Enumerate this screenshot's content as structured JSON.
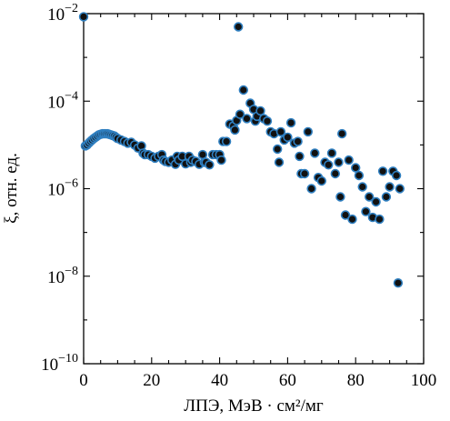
{
  "chart_data": {
    "type": "scatter",
    "title": "",
    "xlabel": "ЛПЭ, МэВ · см²/мг",
    "ylabel": "ξ, отн. ед.",
    "xlim": [
      0,
      100
    ],
    "ylim": [
      1e-10,
      0.01
    ],
    "yscale": "log",
    "grid": false,
    "legend": "none",
    "marker_fill": "#111111",
    "marker_edge": "#2f7fc0",
    "x_ticks": [
      {
        "value": 0,
        "label": "0"
      },
      {
        "value": 20,
        "label": "20"
      },
      {
        "value": 40,
        "label": "40"
      },
      {
        "value": 60,
        "label": "60"
      },
      {
        "value": 80,
        "label": "80"
      },
      {
        "value": 100,
        "label": "100"
      }
    ],
    "y_ticks": [
      {
        "value": 1e-10,
        "base": "10",
        "exp": "−10"
      },
      {
        "value": 1e-08,
        "base": "10",
        "exp": "−8"
      },
      {
        "value": 1e-06,
        "base": "10",
        "exp": "−6"
      },
      {
        "value": 0.0001,
        "base": "10",
        "exp": "−4"
      },
      {
        "value": 0.01,
        "base": "10",
        "exp": "−2"
      }
    ],
    "points": [
      [
        0.0,
        0.0085
      ],
      [
        0.5,
        9.5e-06
      ],
      [
        1.0,
        1e-05
      ],
      [
        1.5,
        1.1e-05
      ],
      [
        2.0,
        1.2e-05
      ],
      [
        2.5,
        1.3e-05
      ],
      [
        3.0,
        1.4e-05
      ],
      [
        3.5,
        1.5e-05
      ],
      [
        4.0,
        1.6e-05
      ],
      [
        4.5,
        1.7e-05
      ],
      [
        5.0,
        1.75e-05
      ],
      [
        5.5,
        1.8e-05
      ],
      [
        6.0,
        1.8e-05
      ],
      [
        6.5,
        1.8e-05
      ],
      [
        7.0,
        1.8e-05
      ],
      [
        7.5,
        1.75e-05
      ],
      [
        8.0,
        1.7e-05
      ],
      [
        8.5,
        1.65e-05
      ],
      [
        9.0,
        1.6e-05
      ],
      [
        9.5,
        1.5e-05
      ],
      [
        10.0,
        1.4e-05
      ],
      [
        11.0,
        1.3e-05
      ],
      [
        12.0,
        1.2e-05
      ],
      [
        13.0,
        1.1e-05
      ],
      [
        14.0,
        1.15e-05
      ],
      [
        15.0,
        1e-05
      ],
      [
        16.0,
        8.5e-06
      ],
      [
        17.0,
        9.5e-06
      ],
      [
        17.5,
        6.5e-06
      ],
      [
        18.0,
        6e-06
      ],
      [
        19.0,
        6e-06
      ],
      [
        20.0,
        5.5e-06
      ],
      [
        21.0,
        5e-06
      ],
      [
        22.0,
        5.5e-06
      ],
      [
        23.0,
        6e-06
      ],
      [
        23.5,
        4.5e-06
      ],
      [
        24.0,
        4.2e-06
      ],
      [
        25.0,
        4e-06
      ],
      [
        26.0,
        4.5e-06
      ],
      [
        27.0,
        3.6e-06
      ],
      [
        27.5,
        5.5e-06
      ],
      [
        28.0,
        4.5e-06
      ],
      [
        29.0,
        5.5e-06
      ],
      [
        30.0,
        3.7e-06
      ],
      [
        31.0,
        5.5e-06
      ],
      [
        31.5,
        4e-06
      ],
      [
        32.0,
        4.5e-06
      ],
      [
        33.0,
        4.2e-06
      ],
      [
        34.0,
        3.6e-06
      ],
      [
        35.0,
        6e-06
      ],
      [
        35.5,
        4e-06
      ],
      [
        36.0,
        4e-06
      ],
      [
        37.0,
        3.5e-06
      ],
      [
        38.0,
        6e-06
      ],
      [
        39.0,
        6e-06
      ],
      [
        40.0,
        6e-06
      ],
      [
        40.5,
        4.5e-06
      ],
      [
        41.0,
        1.2e-05
      ],
      [
        42.0,
        1.2e-05
      ],
      [
        43.0,
        3e-05
      ],
      [
        44.0,
        2.7e-05
      ],
      [
        44.5,
        2.2e-05
      ],
      [
        45.0,
        3.6e-05
      ],
      [
        45.5,
        0.005
      ],
      [
        46.0,
        5e-05
      ],
      [
        47.0,
        0.00018
      ],
      [
        48.0,
        4e-05
      ],
      [
        49.0,
        9e-05
      ],
      [
        50.0,
        6.5e-05
      ],
      [
        50.5,
        3.5e-05
      ],
      [
        51.0,
        4.5e-05
      ],
      [
        52.0,
        6e-05
      ],
      [
        53.0,
        4e-05
      ],
      [
        54.0,
        3.5e-05
      ],
      [
        55.0,
        2e-05
      ],
      [
        56.0,
        1.8e-05
      ],
      [
        57.0,
        8e-06
      ],
      [
        57.5,
        4e-06
      ],
      [
        58.0,
        2e-05
      ],
      [
        59.0,
        1.3e-05
      ],
      [
        60.0,
        1.5e-05
      ],
      [
        61.0,
        3.2e-05
      ],
      [
        62.0,
        1.1e-05
      ],
      [
        63.0,
        1.2e-05
      ],
      [
        63.5,
        5.5e-06
      ],
      [
        64.0,
        2.2e-06
      ],
      [
        65.0,
        2.2e-06
      ],
      [
        66.0,
        2e-05
      ],
      [
        67.0,
        1e-06
      ],
      [
        68.0,
        6.5e-06
      ],
      [
        69.0,
        1.8e-06
      ],
      [
        70.0,
        1.5e-06
      ],
      [
        71.0,
        4e-06
      ],
      [
        72.0,
        3.5e-06
      ],
      [
        73.0,
        6.5e-06
      ],
      [
        74.0,
        2.2e-06
      ],
      [
        75.0,
        4e-06
      ],
      [
        75.5,
        6.5e-07
      ],
      [
        76.0,
        1.8e-05
      ],
      [
        77.0,
        2.5e-07
      ],
      [
        78.0,
        4.5e-06
      ],
      [
        79.0,
        2e-07
      ],
      [
        80.0,
        3e-06
      ],
      [
        81.0,
        2e-06
      ],
      [
        82.0,
        1.1e-06
      ],
      [
        83.0,
        3e-07
      ],
      [
        84.0,
        6.5e-07
      ],
      [
        85.0,
        2.2e-07
      ],
      [
        86.0,
        5e-07
      ],
      [
        87.0,
        2e-07
      ],
      [
        88.0,
        2.5e-06
      ],
      [
        89.0,
        6.5e-07
      ],
      [
        90.0,
        1.1e-06
      ],
      [
        91.0,
        2.5e-06
      ],
      [
        92.0,
        2e-06
      ],
      [
        92.5,
        7e-09
      ],
      [
        93.0,
        1e-06
      ]
    ]
  }
}
